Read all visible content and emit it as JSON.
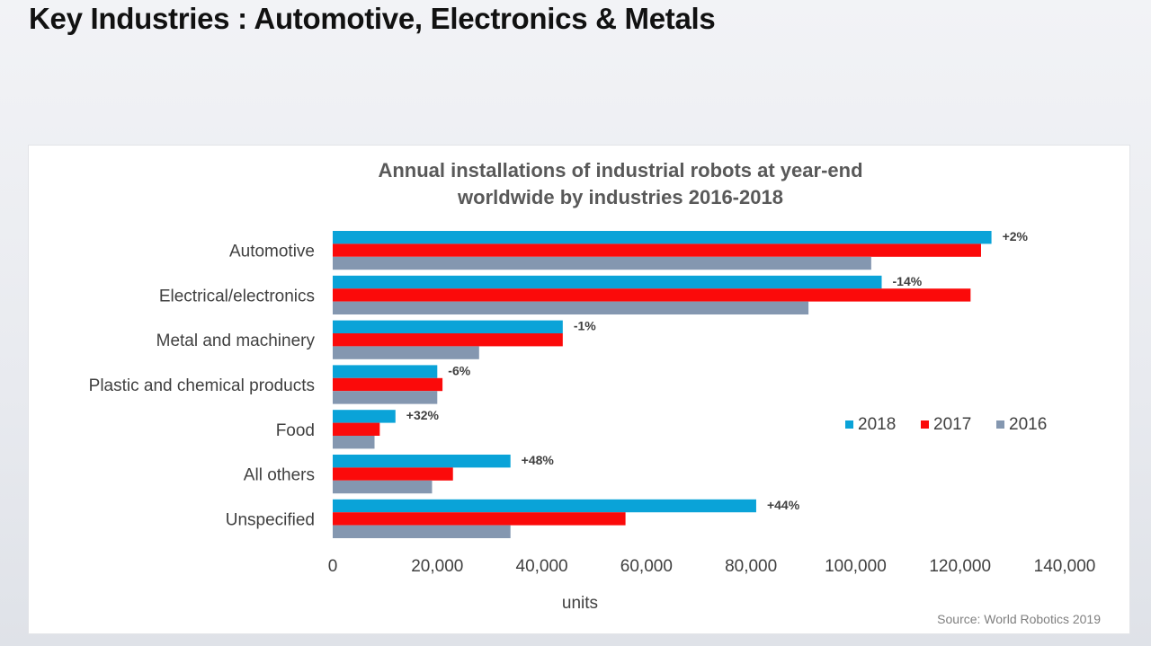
{
  "slide": {
    "title": "Key Industries : Automotive, Electronics & Metals"
  },
  "colors": {
    "series_2018": "#0aa3d8",
    "series_2017": "#fb0a0a",
    "series_2016": "#8497b0"
  },
  "chart_data": {
    "type": "bar",
    "orientation": "horizontal",
    "title_lines": [
      "Annual installations of industrial robots at year-end",
      "worldwide by industries 2016-2018"
    ],
    "categories": [
      "Automotive",
      "Electrical/electronics",
      "Metal and machinery",
      "Plastic and chemical products",
      "Food",
      "All others",
      "Unspecified"
    ],
    "series": [
      {
        "name": "2018",
        "values": [
          126000,
          105000,
          44000,
          20000,
          12000,
          34000,
          81000
        ]
      },
      {
        "name": "2017",
        "values": [
          124000,
          122000,
          44000,
          21000,
          9000,
          23000,
          56000
        ]
      },
      {
        "name": "2016",
        "values": [
          103000,
          91000,
          28000,
          20000,
          8000,
          19000,
          34000
        ]
      }
    ],
    "change_labels": [
      "+2%",
      "-14%",
      "-1%",
      "-6%",
      "+32%",
      "+48%",
      "+44%"
    ],
    "xlabel": "units",
    "xlim": [
      0,
      140000
    ],
    "xticks": [
      "0",
      "20,000",
      "40,000",
      "60,000",
      "80,000",
      "100,000",
      "120,000",
      "140,000"
    ],
    "legend_position": "right",
    "source": "Source: World Robotics 2019",
    "grid": false
  }
}
